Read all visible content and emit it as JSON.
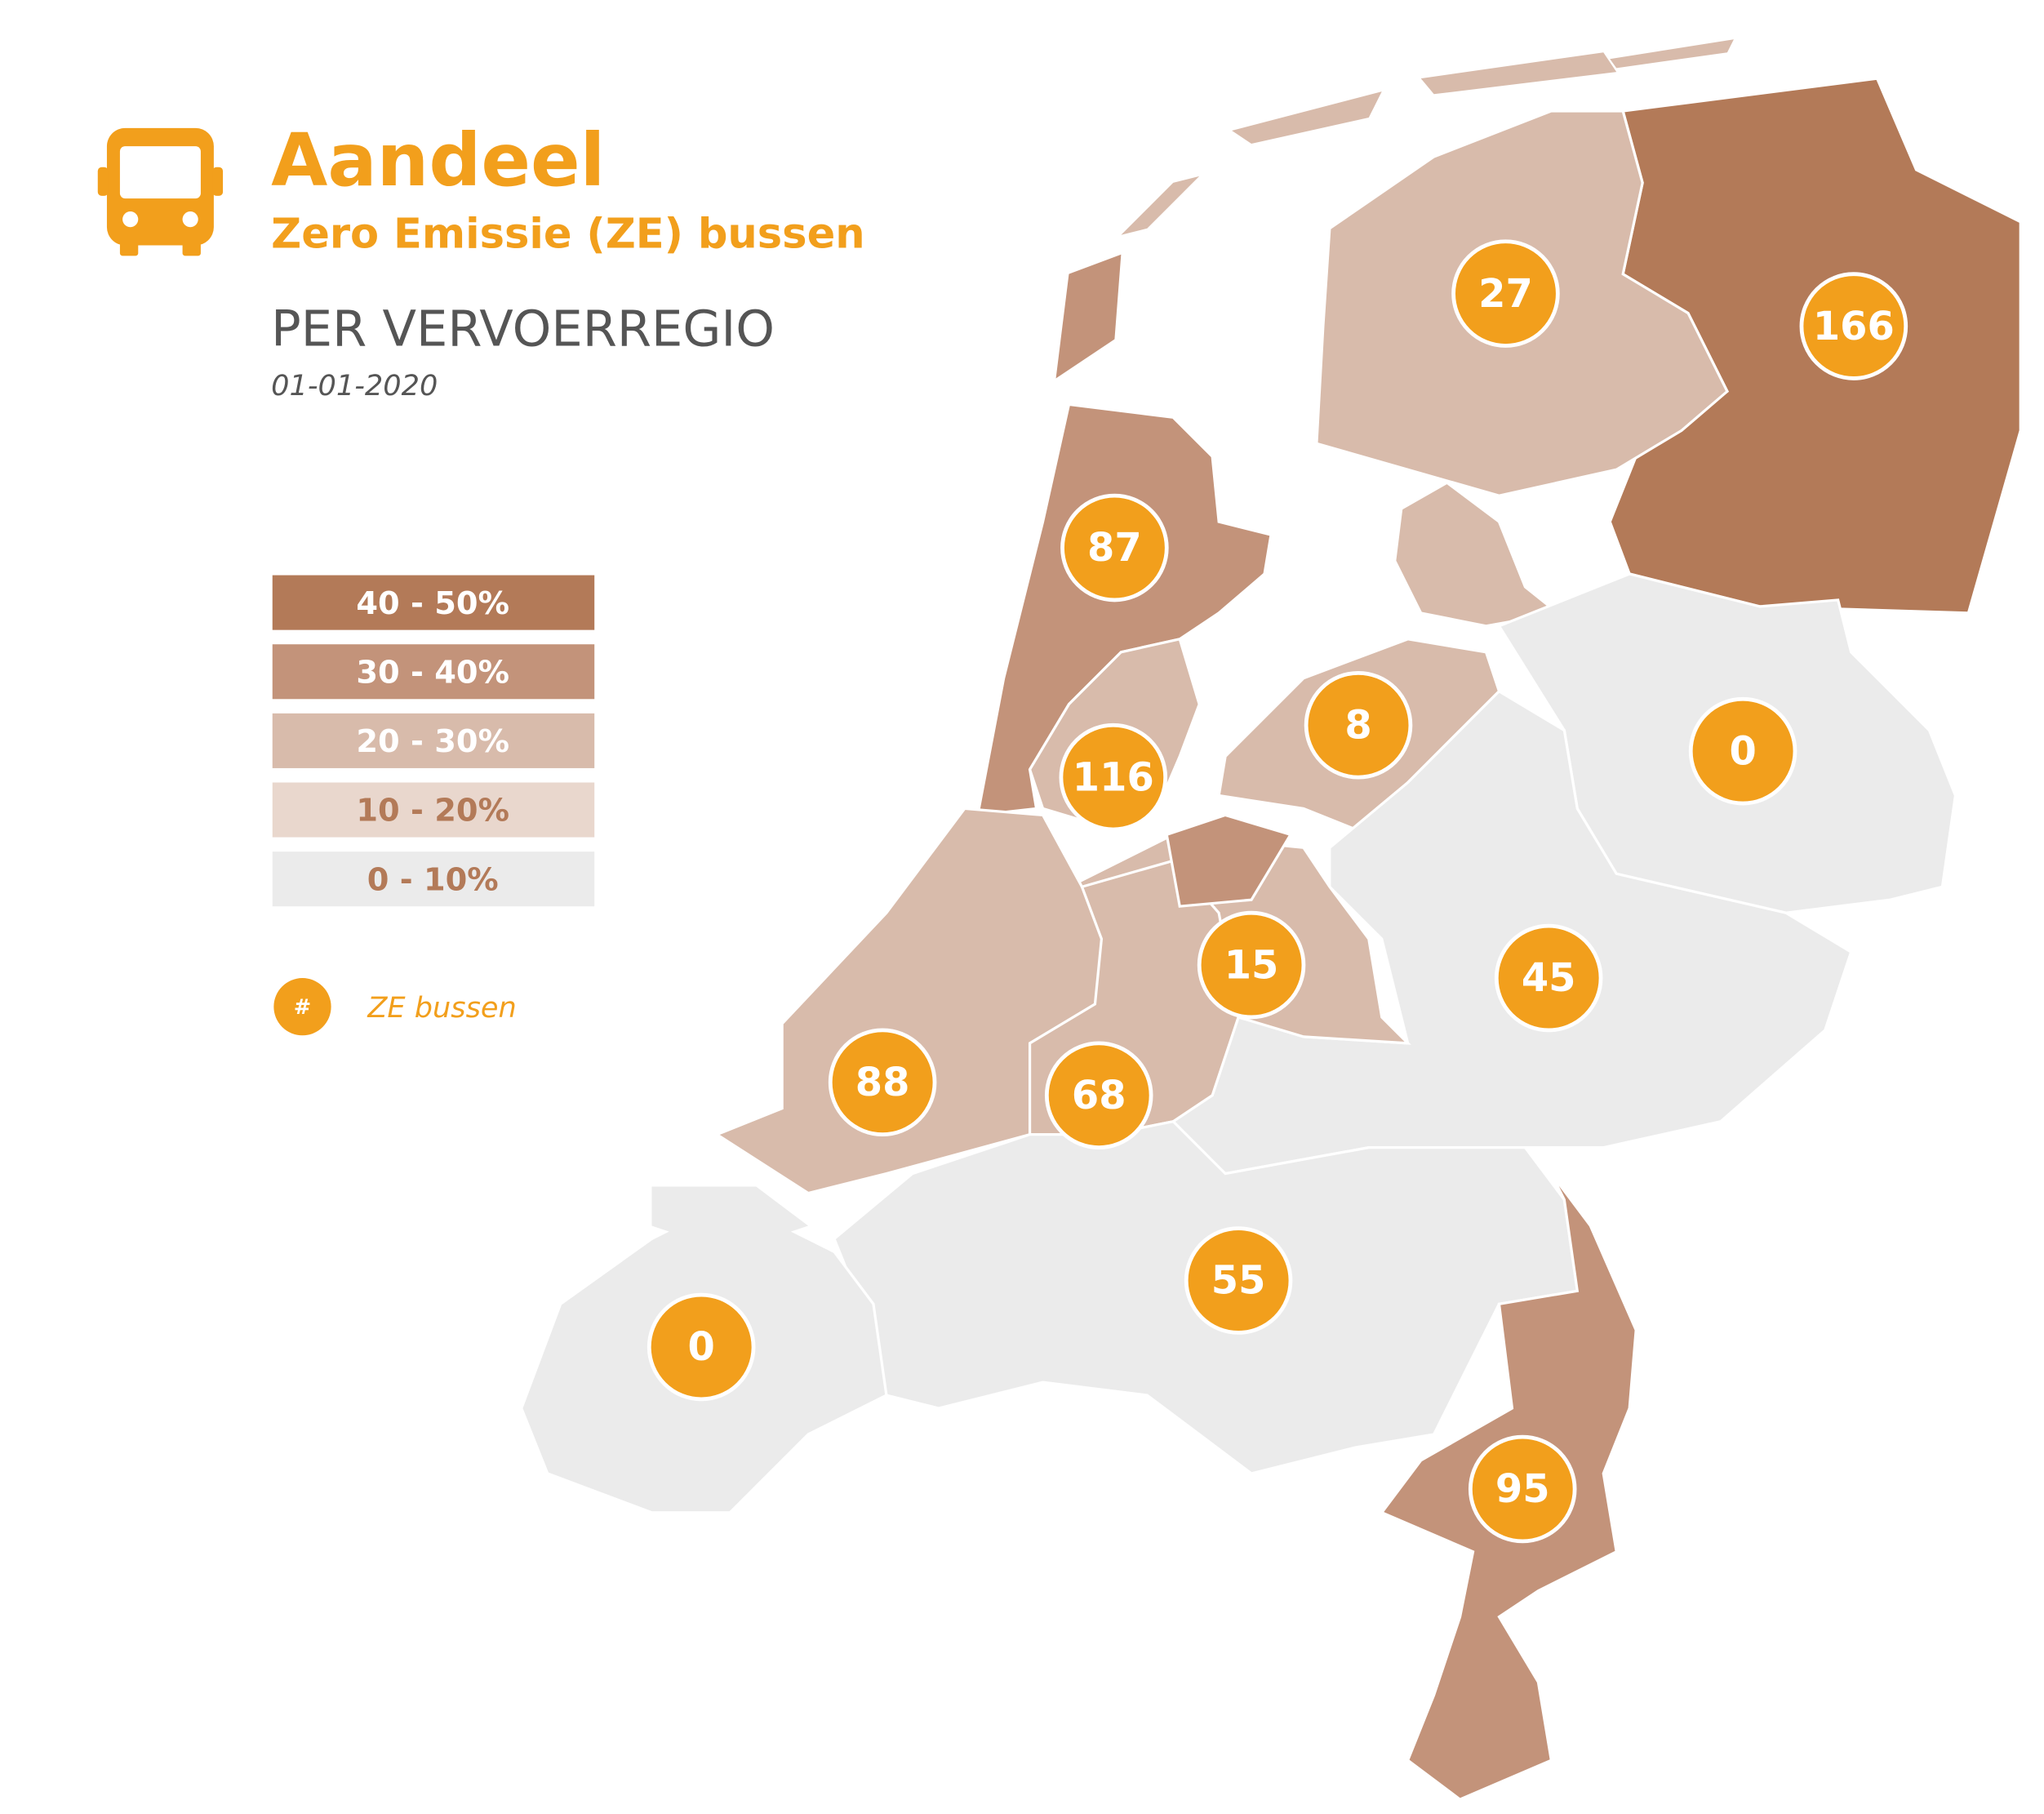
{
  "header": {
    "title": "Aandeel",
    "subtitle": "Zero Emissie (ZE) bussen",
    "heading": "PER VERVOERREGIO",
    "date": "01-01-2020"
  },
  "legend": {
    "items": [
      {
        "label": "40 - 50%",
        "color": "#b37a58",
        "text_color": "#ffffff"
      },
      {
        "label": "30 - 40%",
        "color": "#c3937a",
        "text_color": "#ffffff"
      },
      {
        "label": "20 - 30%",
        "color": "#d8bbab",
        "text_color": "#ffffff"
      },
      {
        "label": "10 - 20%",
        "color": "#e9d7cd",
        "text_color": "#b37a58"
      },
      {
        "label": "0 - 10%",
        "color": "#ebebeb",
        "text_color": "#b37a58"
      }
    ],
    "marker_symbol": "#",
    "marker_label": "ZE bussen"
  },
  "regions": [
    {
      "value": 166,
      "color": "#b37a58"
    },
    {
      "value": 27,
      "color": "#d8bbab"
    },
    {
      "value": 87,
      "color": "#c3937a"
    },
    {
      "value": 116,
      "color": "#d8bbab"
    },
    {
      "value": 8,
      "color": "#d8bbab"
    },
    {
      "value": 0,
      "color": "#ebebeb"
    },
    {
      "value": 45,
      "color": "#ebebeb"
    },
    {
      "value": 15,
      "color": "#d8bbab"
    },
    {
      "value": 88,
      "color": "#d8bbab"
    },
    {
      "value": 68,
      "color": "#d8bbab"
    },
    {
      "value": 55,
      "color": "#ebebeb"
    },
    {
      "value": 0,
      "color": "#ebebeb"
    },
    {
      "value": 95,
      "color": "#c3937a"
    }
  ]
}
